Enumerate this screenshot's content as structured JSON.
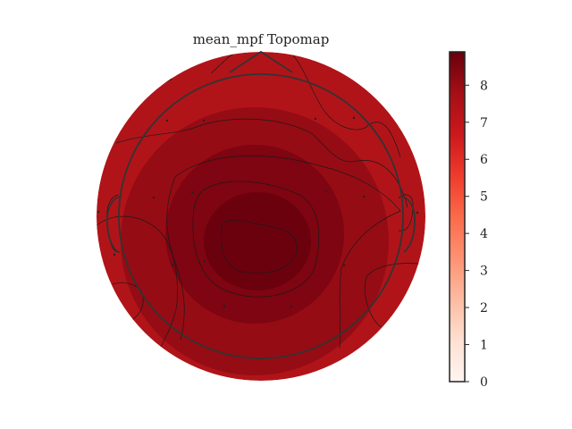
{
  "chart_data": {
    "type": "heatmap",
    "title": "mean_mpf Topomap",
    "colormap": "Reds",
    "colorbar": {
      "range": [
        0,
        8.9
      ],
      "ticks": [
        0,
        1,
        2,
        3,
        4,
        5,
        6,
        7,
        8
      ],
      "tick_labels": [
        "0",
        "1",
        "2",
        "3",
        "4",
        "5",
        "6",
        "7",
        "8"
      ]
    },
    "field": {
      "value_range_shown": [
        7.0,
        8.9
      ],
      "peak_value": 8.9,
      "contour_levels": [
        7.4,
        7.7,
        8.0,
        8.3,
        8.6
      ]
    }
  },
  "colors": {
    "low": "#fff5f0",
    "mid": "#fb6a4a",
    "high": "#67000d",
    "outline": "#333333",
    "contour": "#1a1a1a"
  }
}
